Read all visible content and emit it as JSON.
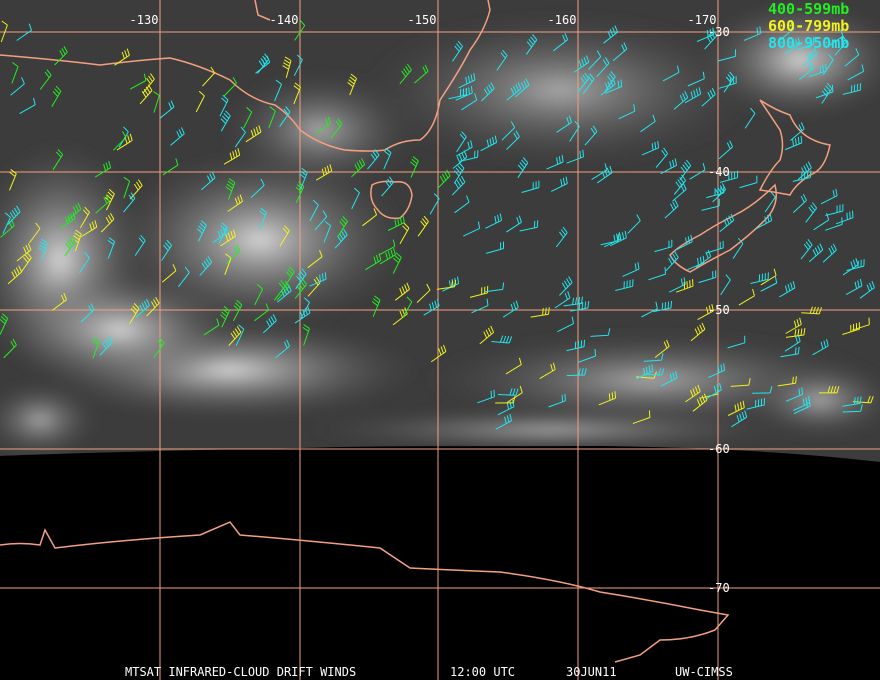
{
  "legend": [
    {
      "label": "400-599mb",
      "color": "#22ee22"
    },
    {
      "label": "600-799mb",
      "color": "#f2f21e"
    },
    {
      "label": "800-950mb",
      "color": "#22e6ee"
    }
  ],
  "grid": {
    "longitudes": [
      "-130",
      "-140",
      "-150",
      "-160",
      "-170"
    ],
    "latitudes": [
      "-30",
      "-40",
      "-50",
      "-60",
      "-70"
    ]
  },
  "caption": {
    "product": "MTSAT INFRARED-CLOUD DRIFT WINDS",
    "time": "12:00 UTC",
    "date": "30JUN11",
    "source": "UW-CIMSS"
  }
}
